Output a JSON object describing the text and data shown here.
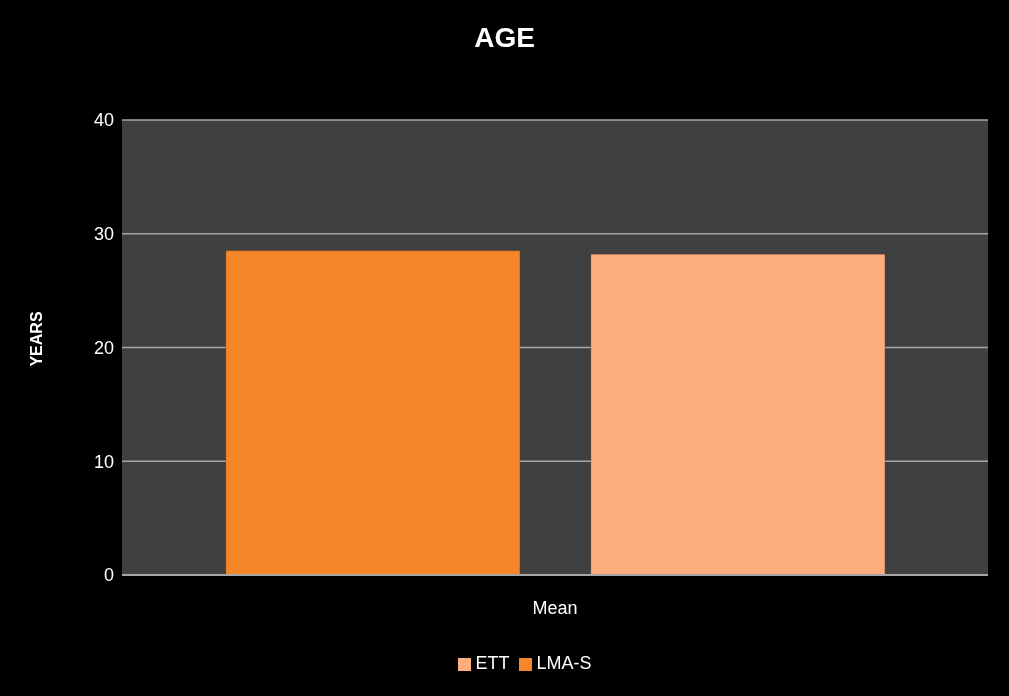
{
  "chart_data": {
    "type": "bar",
    "title": "AGE",
    "ylabel": "YEARS",
    "categories": [
      "Mean"
    ],
    "series": [
      {
        "name": "LMA-S",
        "color": "#f5862a",
        "values": [
          28.5
        ]
      },
      {
        "name": "ETT",
        "color": "#fcae7e",
        "values": [
          28.2
        ]
      }
    ],
    "ylim": [
      0,
      40
    ],
    "yticks": [
      0,
      10,
      20,
      30,
      40
    ],
    "grid": "y",
    "legend": "bottom"
  }
}
